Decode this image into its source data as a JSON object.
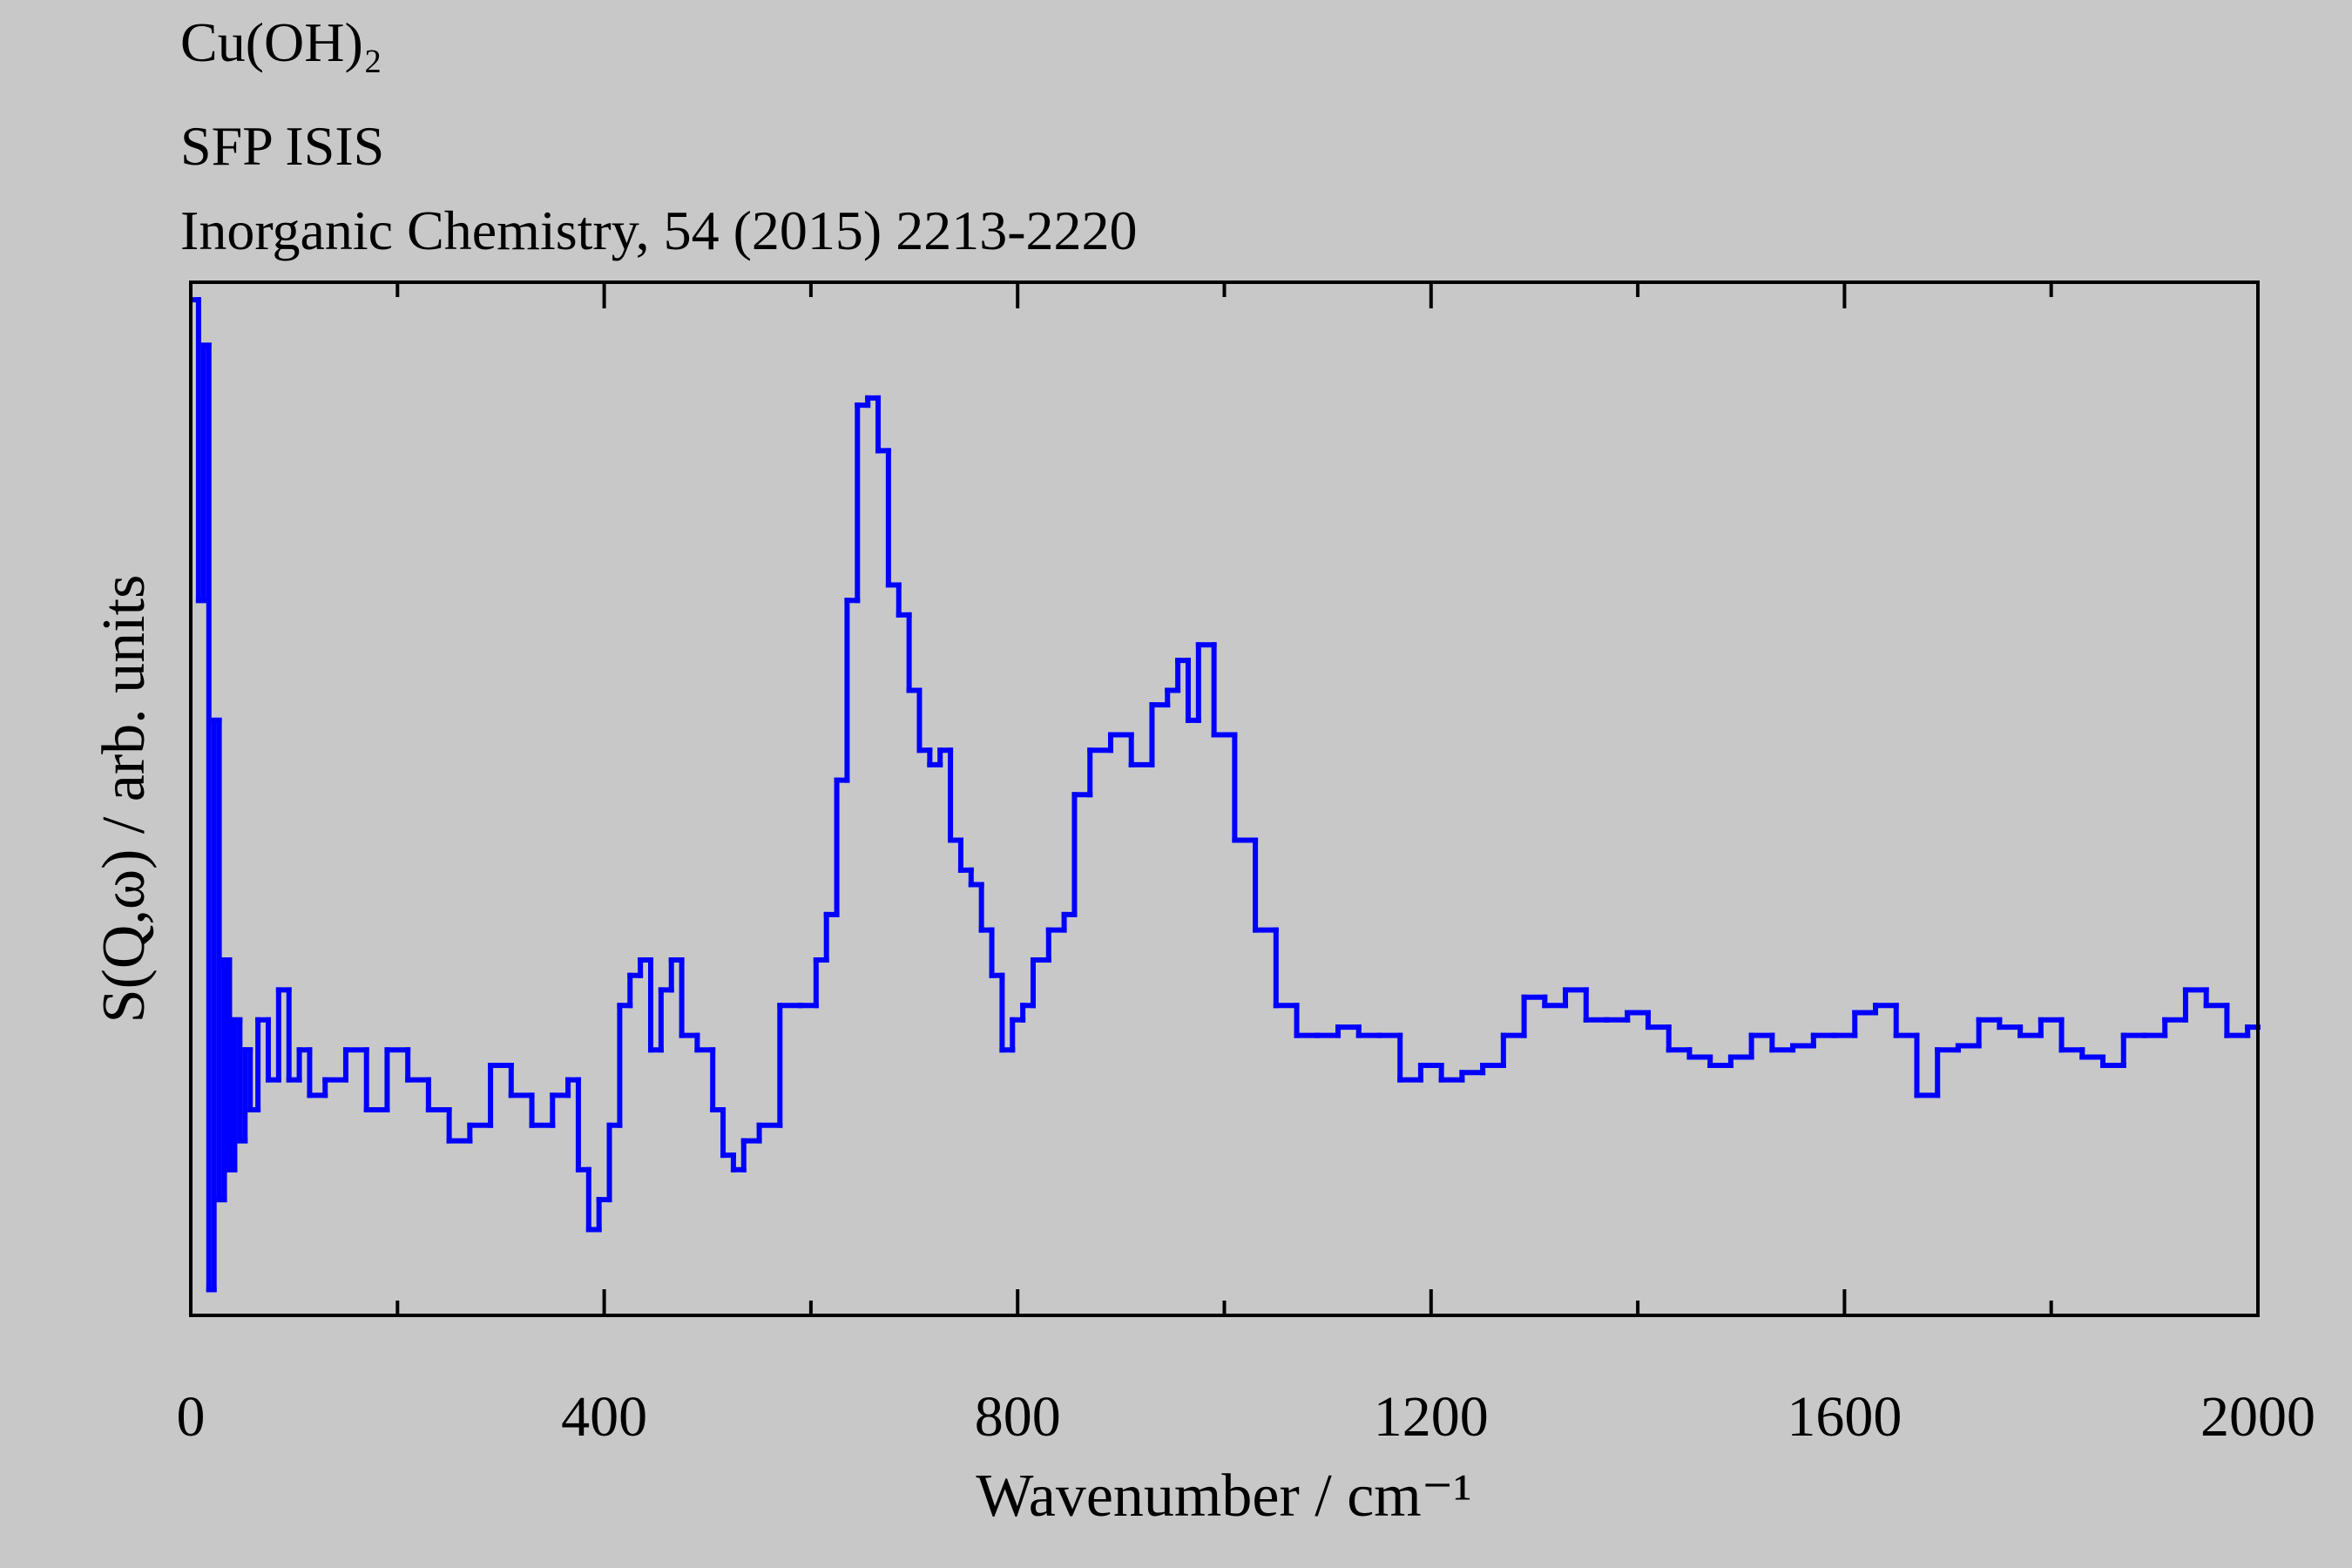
{
  "chart_data": {
    "type": "line",
    "title_lines": [
      "Cu(OH)₂",
      "SFP ISIS",
      "Inorganic Chemistry, 54 (2015) 2213-2220"
    ],
    "xlabel": "Wavenumber / cm⁻¹",
    "ylabel": "S(Q,ω) / arb. units",
    "step": true,
    "xlim": [
      0,
      2000
    ],
    "ylim": [
      0,
      100
    ],
    "xticks": [
      0,
      400,
      800,
      1200,
      1600,
      2000
    ],
    "xticks_minor": [
      200,
      600,
      1000,
      1400,
      1800
    ],
    "x": [
      5,
      10,
      15,
      20,
      25,
      30,
      35,
      40,
      45,
      50,
      55,
      60,
      70,
      80,
      90,
      100,
      110,
      120,
      140,
      160,
      180,
      200,
      220,
      240,
      260,
      280,
      300,
      320,
      340,
      360,
      370,
      380,
      390,
      400,
      410,
      420,
      430,
      440,
      450,
      460,
      470,
      480,
      500,
      510,
      520,
      530,
      540,
      560,
      580,
      600,
      610,
      620,
      630,
      640,
      650,
      660,
      670,
      680,
      690,
      700,
      710,
      720,
      730,
      740,
      750,
      760,
      770,
      780,
      790,
      800,
      810,
      820,
      840,
      850,
      860,
      880,
      900,
      920,
      940,
      950,
      960,
      970,
      980,
      1000,
      1020,
      1040,
      1060,
      1080,
      1100,
      1120,
      1140,
      1160,
      1180,
      1200,
      1220,
      1240,
      1260,
      1280,
      1300,
      1320,
      1340,
      1360,
      1380,
      1400,
      1420,
      1440,
      1460,
      1480,
      1500,
      1520,
      1540,
      1560,
      1580,
      1600,
      1620,
      1640,
      1660,
      1680,
      1700,
      1720,
      1740,
      1760,
      1780,
      1800,
      1820,
      1840,
      1860,
      1880,
      1900,
      1920,
      1940,
      1960,
      1980,
      2000
    ],
    "series": [
      {
        "color": "#0000ff",
        "values": [
          98.3,
          69.2,
          93.9,
          2.5,
          57.6,
          11.2,
          34.4,
          14.1,
          28.6,
          16.9,
          25.7,
          19.9,
          28.6,
          22.8,
          31.5,
          22.8,
          25.7,
          21.3,
          22.8,
          25.7,
          19.9,
          25.7,
          22.8,
          19.9,
          16.9,
          18.4,
          24.2,
          21.3,
          18.4,
          21.3,
          22.8,
          14.1,
          8.3,
          11.2,
          18.4,
          30.0,
          32.9,
          34.4,
          25.7,
          31.5,
          34.4,
          27.1,
          25.7,
          19.9,
          15.5,
          14.1,
          16.9,
          18.4,
          30.0,
          30.0,
          34.4,
          38.8,
          51.8,
          69.2,
          88.1,
          88.8,
          83.7,
          70.7,
          67.8,
          60.5,
          54.7,
          53.3,
          54.7,
          46.0,
          43.1,
          41.7,
          37.3,
          32.9,
          25.7,
          28.6,
          30.0,
          34.4,
          37.3,
          38.8,
          50.4,
          54.7,
          56.2,
          53.3,
          59.1,
          60.5,
          63.4,
          57.6,
          64.9,
          56.2,
          46.0,
          37.3,
          30.0,
          27.1,
          27.1,
          27.9,
          27.1,
          27.1,
          22.8,
          24.2,
          22.8,
          23.5,
          24.2,
          27.1,
          30.8,
          30.0,
          31.5,
          28.6,
          28.6,
          29.3,
          27.9,
          25.7,
          25.0,
          24.2,
          25.0,
          27.1,
          25.7,
          26.1,
          27.1,
          27.1,
          29.3,
          30.0,
          27.1,
          21.3,
          25.7,
          26.1,
          28.6,
          27.9,
          27.1,
          28.6,
          25.7,
          25.0,
          24.2,
          27.1,
          27.1,
          28.6,
          31.5,
          30.0,
          27.1,
          27.9
        ]
      }
    ]
  }
}
